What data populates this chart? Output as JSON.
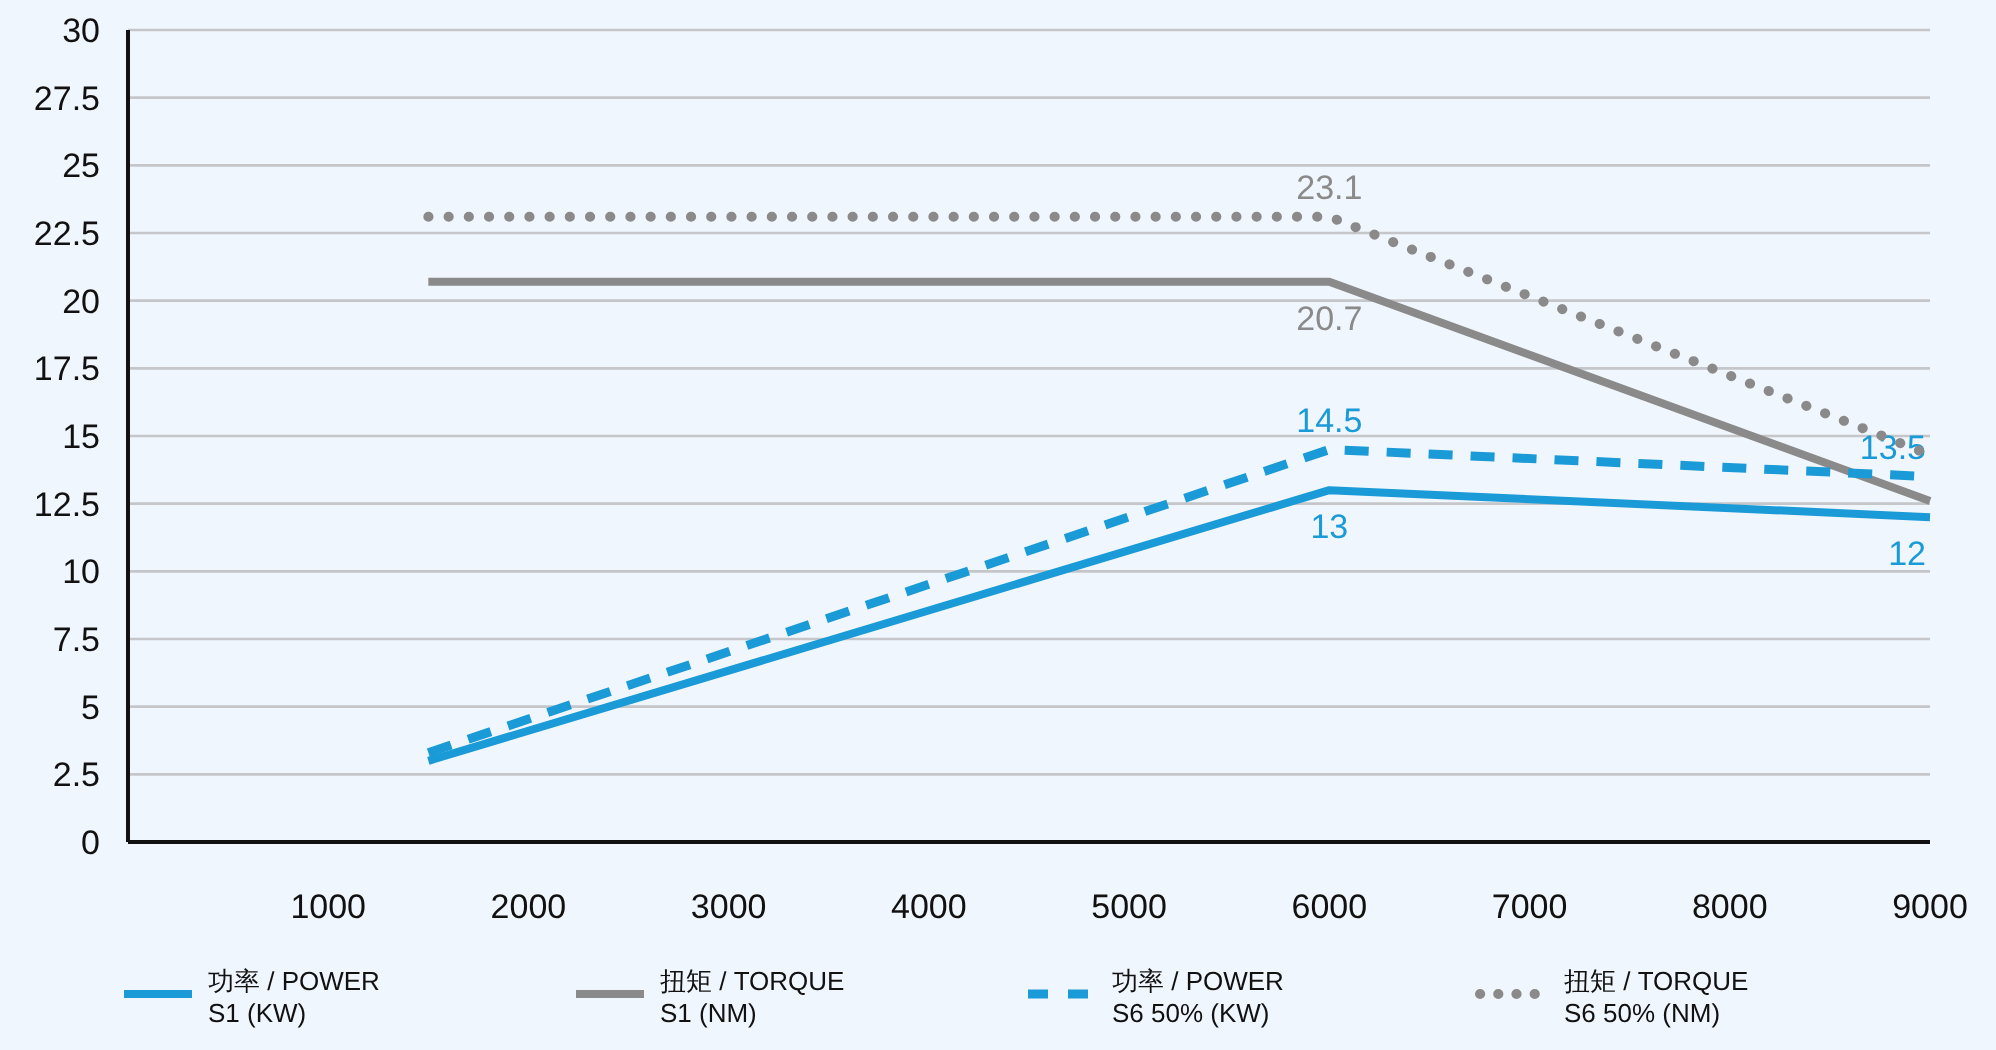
{
  "chart_data": {
    "type": "line",
    "x": [
      1500,
      6000,
      9000
    ],
    "xlim": [
      0,
      9000
    ],
    "xticks": [
      1000,
      2000,
      3000,
      4000,
      5000,
      6000,
      7000,
      8000,
      9000
    ],
    "ylim": [
      0,
      30
    ],
    "yticks": [
      0,
      2.5,
      5,
      7.5,
      10,
      12.5,
      15,
      17.5,
      20,
      22.5,
      25,
      27.5,
      30
    ],
    "grid": "y",
    "legend": "bottom",
    "series": [
      {
        "name": "功率 / POWER\nS1 (KW)",
        "color": "#1a9ad6",
        "line_style": "solid",
        "values": [
          3.0,
          13,
          12
        ],
        "value_labels": [
          null,
          "13",
          "12"
        ]
      },
      {
        "name": "扭矩 /  TORQUE\nS1 (NM)",
        "color": "#8a8a8a",
        "line_style": "solid",
        "values": [
          20.7,
          20.7,
          12.6
        ],
        "value_labels": [
          null,
          "20.7",
          null
        ]
      },
      {
        "name": "功率 / POWER\nS6 50% (KW)",
        "color": "#1a9ad6",
        "line_style": "dashed",
        "values": [
          3.3,
          14.5,
          13.5
        ],
        "value_labels": [
          null,
          "14.5",
          "13.5"
        ]
      },
      {
        "name": "扭矩 /  TORQUE\nS6 50% (NM)",
        "color": "#8a8a8a",
        "line_style": "dotted",
        "values": [
          23.1,
          23.1,
          14.3
        ],
        "value_labels": [
          null,
          "23.1",
          null
        ]
      }
    ]
  }
}
